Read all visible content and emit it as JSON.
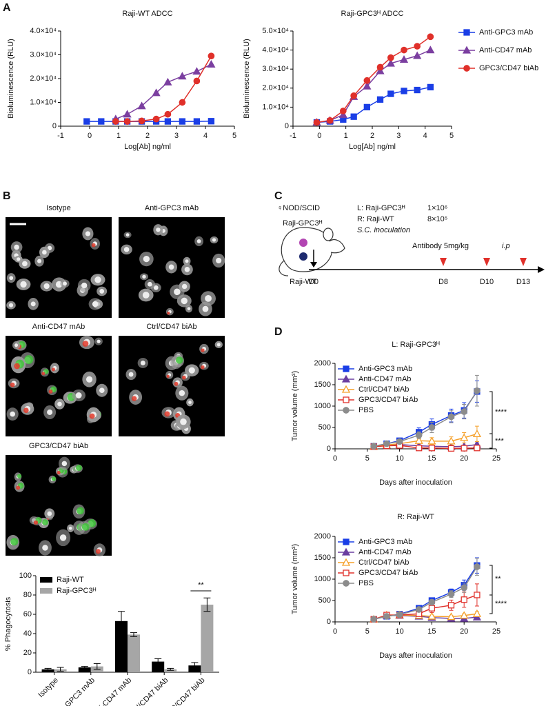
{
  "panel_labels": [
    "A",
    "B",
    "C",
    "D"
  ],
  "microscopy": {
    "titles": [
      "Isotype",
      "Anti-GPC3 mAb",
      "Anti-CD47 mAb",
      "Ctrl/CD47 biAb",
      "GPC3/CD47 biAb"
    ]
  },
  "schematic": {
    "mouse": "♀NOD/SCID",
    "tumor_left": "Raji-GPC3ᴴ",
    "tumor_right": "Raji-WT",
    "injection": [
      "L: Raji-GPC3ᴴ",
      "R: Raji-WT"
    ],
    "doses": [
      "1×10⁶",
      "8×10⁵"
    ],
    "route": "S.C. inoculation",
    "treatment": "Antibody 5mg/kg",
    "treatment_route": "i.p",
    "timeline": [
      "D0",
      "D8",
      "D10",
      "D13"
    ]
  },
  "chart_data": [
    {
      "type": "line",
      "title": "Raji-WT ADCC",
      "xlabel": "Log[Ab] ng/ml",
      "ylabel": "Bioluminescence (RLU)",
      "x": [
        -0.1,
        0.4,
        0.9,
        1.3,
        1.8,
        2.3,
        2.7,
        3.2,
        3.7,
        4.2
      ],
      "xlim": [
        -1,
        5
      ],
      "xticks": [
        -1,
        0,
        1,
        2,
        3,
        4,
        5
      ],
      "ylim": [
        0,
        40000
      ],
      "yticks": [
        0,
        {
          "value": 10000,
          "label": "1.0×10⁴"
        },
        {
          "value": 20000,
          "label": "2.0×10⁴"
        },
        {
          "value": 30000,
          "label": "3.0×10⁴"
        },
        {
          "value": 40000,
          "label": "4.0×10⁴"
        }
      ],
      "series": [
        {
          "color": "#1a3ee6",
          "marker": "square",
          "filled": true,
          "values": [
            2000,
            2000,
            2000,
            2000,
            2000,
            2000,
            2000,
            2000,
            2000,
            2100
          ]
        },
        {
          "color": "#7b3fa0",
          "marker": "triangle",
          "filled": true,
          "values": [
            null,
            null,
            3000,
            5000,
            8500,
            14000,
            18500,
            21000,
            23000,
            26000
          ]
        },
        {
          "color": "#e0302a",
          "marker": "circle",
          "filled": true,
          "values": [
            null,
            null,
            2000,
            2000,
            2200,
            3000,
            5000,
            10000,
            19000,
            29500
          ]
        }
      ]
    },
    {
      "type": "line",
      "title": "Raji-GPC3ᴴ ADCC",
      "xlabel": "Log[Ab] ng/ml",
      "ylabel": "Bioluminescence (RLU)",
      "x": [
        -0.1,
        0.4,
        0.9,
        1.3,
        1.8,
        2.3,
        2.7,
        3.2,
        3.7,
        4.2
      ],
      "xlim": [
        -1,
        5
      ],
      "xticks": [
        -1,
        0,
        1,
        2,
        3,
        4,
        5
      ],
      "ylim": [
        0,
        50000
      ],
      "yticks": [
        0,
        {
          "value": 10000,
          "label": "1.0×10⁴"
        },
        {
          "value": 20000,
          "label": "2.0×10⁴"
        },
        {
          "value": 30000,
          "label": "3.0×10⁴"
        },
        {
          "value": 40000,
          "label": "4.0×10⁴"
        },
        {
          "value": 50000,
          "label": "5.0×10⁴"
        }
      ],
      "legend": "outside-right",
      "series": [
        {
          "name": "Anti-GPC3 mAb",
          "color": "#1a3ee6",
          "marker": "square",
          "filled": true,
          "values": [
            2000,
            2500,
            3500,
            5000,
            10000,
            14000,
            17000,
            18500,
            19000,
            20500
          ]
        },
        {
          "name": "Anti-CD47 mAb",
          "color": "#7b3fa0",
          "marker": "triangle",
          "filled": true,
          "values": [
            2000,
            3000,
            6000,
            15500,
            21000,
            29000,
            33000,
            35000,
            37000,
            40000
          ]
        },
        {
          "name": "GPC3/CD47 biAb",
          "color": "#e0302a",
          "marker": "circle",
          "filled": true,
          "values": [
            2000,
            3000,
            8000,
            16000,
            24000,
            31000,
            36000,
            40000,
            42000,
            47000
          ]
        }
      ]
    },
    {
      "type": "bar",
      "ylabel": "% Phagocytosis",
      "categories": [
        "Isotype",
        "Anti-GPC3 mAb",
        "Anti-CD47 mAb",
        "Ctrl/CD47 biAb",
        "GPC3/CD47 biAb"
      ],
      "ylim": [
        0,
        100
      ],
      "yticks": [
        0,
        20,
        40,
        60,
        80,
        100
      ],
      "legend": "upper-left",
      "annotations": [
        "**"
      ],
      "series": [
        {
          "name": "Raji-WT",
          "color": "#000000",
          "values": [
            3,
            5,
            53,
            11,
            7
          ],
          "errors": [
            1,
            1,
            10,
            3,
            3
          ]
        },
        {
          "name": "Raji-GPC3ᴴ",
          "color": "#a6a6a6",
          "values": [
            3,
            6,
            39,
            3,
            70
          ],
          "errors": [
            2,
            3,
            2,
            1,
            7
          ]
        }
      ]
    },
    {
      "type": "line",
      "title": "L: Raji-GPC3ᴴ",
      "xlabel": "Days after inoculation",
      "ylabel": "Tumor volume (mm³)",
      "x": [
        6,
        8,
        10,
        13,
        15,
        18,
        20,
        22
      ],
      "xlim": [
        0,
        25
      ],
      "xticks": [
        0,
        5,
        10,
        15,
        20,
        25
      ],
      "ylim": [
        0,
        2000
      ],
      "yticks": [
        0,
        500,
        1000,
        1500,
        2000
      ],
      "legend": "upper-left",
      "annotations": [
        "****",
        "***"
      ],
      "series": [
        {
          "name": "Anti-GPC3 mAb",
          "color": "#1a3ee6",
          "marker": "square",
          "filled": true,
          "values": [
            60,
            120,
            190,
            390,
            570,
            780,
            900,
            1340
          ],
          "errors": [
            20,
            30,
            40,
            100,
            130,
            150,
            180,
            250
          ]
        },
        {
          "name": "Anti-CD47 mAb",
          "color": "#6b3fa0",
          "marker": "triangle",
          "filled": true,
          "values": [
            50,
            80,
            100,
            70,
            60,
            50,
            60,
            100
          ],
          "errors": [
            10,
            20,
            20,
            20,
            20,
            20,
            20,
            40
          ]
        },
        {
          "name": "Ctrl/CD47 biAb",
          "color": "#f5a02a",
          "marker": "triangle",
          "filled": false,
          "values": [
            50,
            90,
            120,
            190,
            180,
            180,
            260,
            350
          ],
          "errors": [
            10,
            20,
            30,
            60,
            80,
            100,
            120,
            180
          ]
        },
        {
          "name": "GPC3/CD47 biAb",
          "color": "#e0302a",
          "marker": "square",
          "filled": false,
          "values": [
            50,
            70,
            80,
            20,
            20,
            10,
            15,
            20
          ],
          "errors": [
            10,
            10,
            20,
            10,
            10,
            10,
            10,
            10
          ]
        },
        {
          "name": "PBS",
          "color": "#8c8c8c",
          "marker": "circle",
          "filled": true,
          "values": [
            60,
            120,
            170,
            320,
            500,
            750,
            870,
            1360
          ],
          "errors": [
            20,
            30,
            40,
            80,
            120,
            140,
            170,
            360
          ]
        }
      ]
    },
    {
      "type": "line",
      "title": "R: Raji-WT",
      "xlabel": "Days after inoculation",
      "ylabel": "Tumor volume (mm³)",
      "x": [
        6,
        8,
        10,
        13,
        15,
        18,
        20,
        22
      ],
      "xlim": [
        0,
        25
      ],
      "xticks": [
        0,
        5,
        10,
        15,
        20,
        25
      ],
      "ylim": [
        0,
        2000
      ],
      "yticks": [
        0,
        500,
        1000,
        1500,
        2000
      ],
      "legend": "upper-left",
      "annotations": [
        "**",
        "****"
      ],
      "series": [
        {
          "name": "Anti-GPC3 mAb",
          "color": "#1a3ee6",
          "marker": "square",
          "filled": true,
          "values": [
            60,
            130,
            180,
            320,
            500,
            690,
            860,
            1320
          ],
          "errors": [
            20,
            30,
            30,
            50,
            60,
            80,
            120,
            180
          ]
        },
        {
          "name": "Anti-CD47 mAb",
          "color": "#6b3fa0",
          "marker": "triangle",
          "filled": true,
          "values": [
            60,
            150,
            150,
            130,
            100,
            80,
            80,
            110
          ],
          "errors": [
            10,
            20,
            20,
            20,
            20,
            20,
            20,
            30
          ]
        },
        {
          "name": "Ctrl/CD47 biAb",
          "color": "#f5a02a",
          "marker": "triangle",
          "filled": false,
          "values": [
            60,
            160,
            160,
            150,
            130,
            120,
            150,
            190
          ],
          "errors": [
            10,
            20,
            20,
            30,
            30,
            30,
            40,
            50
          ]
        },
        {
          "name": "GPC3/CD47 biAb",
          "color": "#e0302a",
          "marker": "square",
          "filled": false,
          "values": [
            60,
            160,
            160,
            190,
            320,
            390,
            520,
            630
          ],
          "errors": [
            10,
            20,
            30,
            60,
            100,
            120,
            180,
            260
          ]
        },
        {
          "name": "PBS",
          "color": "#8c8c8c",
          "marker": "circle",
          "filled": true,
          "values": [
            60,
            130,
            170,
            290,
            460,
            650,
            800,
            1290
          ],
          "errors": [
            20,
            30,
            30,
            50,
            60,
            80,
            110,
            200
          ]
        }
      ]
    }
  ]
}
